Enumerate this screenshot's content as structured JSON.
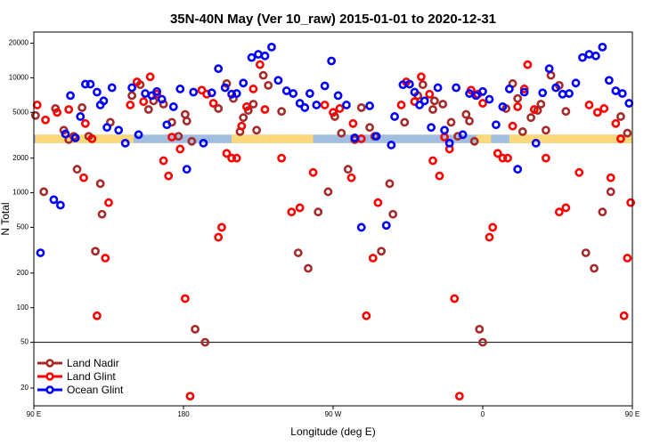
{
  "chart_data": {
    "type": "scatter",
    "title": "35N-40N May (Ver 10_raw)   2015-01-01 to 2020-12-31",
    "xlabel": "Longitude (deg E)",
    "ylabel": "N Total",
    "y_scale": "log",
    "xlim": [
      90,
      450
    ],
    "ylim": [
      14,
      25000
    ],
    "x_ticks": [
      {
        "value": 90,
        "label": "90 E"
      },
      {
        "value": 180,
        "label": "180"
      },
      {
        "value": 270,
        "label": "90 W"
      },
      {
        "value": 360,
        "label": "0"
      },
      {
        "value": 450,
        "label": "90 E"
      },
      {
        "value": 540,
        "label": "180"
      }
    ],
    "y_ticks": [
      20,
      50,
      100,
      200,
      500,
      1000,
      2000,
      5000,
      10000,
      20000
    ],
    "reference_line": 50,
    "legend_position": "bottom-left",
    "band": {
      "y_low": 2700,
      "y_high": 3200,
      "ocean_color": "#a3bde0",
      "land_color": "#fbd97a"
    },
    "series": [
      {
        "name": "Land Nadir",
        "color": "#a52a2a",
        "points": [
          [
            91,
            4700
          ],
          [
            96,
            1020
          ],
          [
            103,
            5400
          ],
          [
            108,
            3500
          ],
          [
            111,
            2900
          ],
          [
            114,
            3100
          ],
          [
            116,
            1600
          ],
          [
            119,
            5500
          ],
          [
            123,
            3100
          ],
          [
            127,
            310
          ],
          [
            130,
            1200
          ],
          [
            131,
            650
          ],
          [
            136,
            4100
          ],
          [
            149,
            7000
          ],
          [
            154,
            8700
          ],
          [
            159,
            5300
          ],
          [
            162,
            6300
          ],
          [
            168,
            5900
          ],
          [
            173,
            4100
          ],
          [
            177,
            3100
          ],
          [
            181,
            4800
          ],
          [
            182,
            4200
          ],
          [
            185,
            2800
          ],
          [
            187,
            65
          ],
          [
            193,
            50
          ],
          [
            201,
            5400
          ],
          [
            206,
            8900
          ],
          [
            210,
            6600
          ],
          [
            214,
            3400
          ],
          [
            216,
            4500
          ],
          [
            219,
            5200
          ],
          [
            222,
            5900
          ],
          [
            224,
            3500
          ],
          [
            228,
            10500
          ],
          [
            231,
            8600
          ],
          [
            239,
            5100
          ],
          [
            249,
            300
          ],
          [
            255,
            220
          ],
          [
            261,
            680
          ],
          [
            267,
            1020
          ],
          [
            271,
            4600
          ],
          [
            275,
            3300
          ],
          [
            279,
            1600
          ],
          [
            283,
            2900
          ],
          [
            287,
            5500
          ],
          [
            292,
            3700
          ],
          [
            295,
            3100
          ],
          [
            299,
            310
          ],
          [
            304,
            1200
          ],
          [
            306,
            650
          ],
          [
            313,
            4100
          ],
          [
            321,
            7000
          ],
          [
            324,
            8700
          ],
          [
            330,
            5300
          ],
          [
            331,
            6300
          ],
          [
            336,
            5900
          ],
          [
            341,
            4100
          ],
          [
            345,
            3100
          ],
          [
            350,
            4800
          ],
          [
            352,
            4200
          ],
          [
            355,
            2800
          ],
          [
            358,
            65
          ],
          [
            360,
            50
          ],
          [
            374,
            5400
          ],
          [
            378,
            8900
          ],
          [
            381,
            6600
          ],
          [
            384,
            3400
          ],
          [
            389,
            4500
          ],
          [
            393,
            5200
          ],
          [
            395,
            5900
          ],
          [
            398,
            3500
          ],
          [
            401,
            10500
          ],
          [
            406,
            8600
          ],
          [
            410,
            5100
          ],
          [
            422,
            300
          ],
          [
            427,
            220
          ],
          [
            432,
            680
          ],
          [
            437,
            1020
          ],
          [
            443,
            4600
          ],
          [
            447,
            3300
          ]
        ]
      },
      {
        "name": "Land Glint",
        "color": "#ff0000",
        "points": [
          [
            92,
            5800
          ],
          [
            97,
            4300
          ],
          [
            104,
            5000
          ],
          [
            111,
            5300
          ],
          [
            120,
            1350
          ],
          [
            121,
            4000
          ],
          [
            125,
            2950
          ],
          [
            128,
            85
          ],
          [
            133,
            270
          ],
          [
            135,
            820
          ],
          [
            148,
            5800
          ],
          [
            152,
            9200
          ],
          [
            156,
            6200
          ],
          [
            160,
            10200
          ],
          [
            164,
            7200
          ],
          [
            168,
            1900
          ],
          [
            171,
            1400
          ],
          [
            173,
            3050
          ],
          [
            178,
            2400
          ],
          [
            181,
            120
          ],
          [
            184,
            17
          ],
          [
            191,
            7800
          ],
          [
            194,
            7200
          ],
          [
            198,
            6000
          ],
          [
            201,
            410
          ],
          [
            203,
            500
          ],
          [
            206,
            2200
          ],
          [
            209,
            2000
          ],
          [
            212,
            2000
          ],
          [
            215,
            3800
          ],
          [
            218,
            5600
          ],
          [
            222,
            8000
          ],
          [
            226,
            13000
          ],
          [
            229,
            5300
          ],
          [
            239,
            2000
          ],
          [
            245,
            680
          ],
          [
            250,
            740
          ],
          [
            258,
            1500
          ],
          [
            265,
            5800
          ],
          [
            270,
            5000
          ],
          [
            274,
            5400
          ],
          [
            281,
            1350
          ],
          [
            282,
            4000
          ],
          [
            287,
            2950
          ],
          [
            290,
            85
          ],
          [
            294,
            270
          ],
          [
            297,
            820
          ],
          [
            311,
            5800
          ],
          [
            314,
            9200
          ],
          [
            319,
            6200
          ],
          [
            323,
            10200
          ],
          [
            328,
            7200
          ],
          [
            330,
            1900
          ],
          [
            334,
            1400
          ],
          [
            337,
            3050
          ],
          [
            340,
            2400
          ],
          [
            343,
            120
          ],
          [
            346,
            17
          ],
          [
            353,
            7800
          ],
          [
            357,
            7200
          ],
          [
            360,
            6000
          ],
          [
            364,
            410
          ],
          [
            366,
            500
          ],
          [
            369,
            2200
          ],
          [
            372,
            2000
          ],
          [
            375,
            2000
          ],
          [
            378,
            3800
          ],
          [
            381,
            5600
          ],
          [
            385,
            8000
          ],
          [
            387,
            13000
          ],
          [
            391,
            5300
          ],
          [
            398,
            2000
          ],
          [
            406,
            680
          ],
          [
            410,
            740
          ],
          [
            418,
            1500
          ],
          [
            424,
            5800
          ],
          [
            429,
            5000
          ],
          [
            433,
            5400
          ],
          [
            437,
            1350
          ],
          [
            440,
            4000
          ],
          [
            443,
            2950
          ],
          [
            445,
            85
          ],
          [
            447,
            270
          ],
          [
            449,
            820
          ]
        ]
      },
      {
        "name": "Ocean Glint",
        "color": "#0000ff",
        "points": [
          [
            94,
            300
          ],
          [
            102,
            870
          ],
          [
            106,
            780
          ],
          [
            109,
            3250
          ],
          [
            112,
            7000
          ],
          [
            115,
            3000
          ],
          [
            118,
            4600
          ],
          [
            121,
            8800
          ],
          [
            124,
            8800
          ],
          [
            128,
            7500
          ],
          [
            130,
            5800
          ],
          [
            132,
            6300
          ],
          [
            134,
            3700
          ],
          [
            137,
            8200
          ],
          [
            141,
            3500
          ],
          [
            145,
            2700
          ],
          [
            149,
            8200
          ],
          [
            153,
            3200
          ],
          [
            157,
            7300
          ],
          [
            161,
            7000
          ],
          [
            164,
            7600
          ],
          [
            167,
            6500
          ],
          [
            170,
            3900
          ],
          [
            174,
            5600
          ],
          [
            178,
            8000
          ],
          [
            182,
            1600
          ],
          [
            186,
            7500
          ],
          [
            192,
            2700
          ],
          [
            197,
            7400
          ],
          [
            201,
            12000
          ],
          [
            205,
            8200
          ],
          [
            209,
            7200
          ],
          [
            212,
            7300
          ],
          [
            216,
            9000
          ],
          [
            221,
            15000
          ],
          [
            225,
            16000
          ],
          [
            229,
            15500
          ],
          [
            233,
            18500
          ],
          [
            237,
            9500
          ],
          [
            242,
            7700
          ],
          [
            246,
            7300
          ],
          [
            250,
            6000
          ],
          [
            253,
            5500
          ],
          [
            256,
            7300
          ],
          [
            260,
            5800
          ],
          [
            265,
            8500
          ],
          [
            269,
            14000
          ],
          [
            273,
            7000
          ],
          [
            278,
            5800
          ],
          [
            283,
            3000
          ],
          [
            287,
            500
          ],
          [
            292,
            5700
          ],
          [
            296,
            3100
          ],
          [
            302,
            520
          ],
          [
            305,
            2600
          ],
          [
            307,
            4600
          ],
          [
            312,
            8700
          ],
          [
            316,
            8800
          ],
          [
            319,
            7500
          ],
          [
            322,
            5800
          ],
          [
            325,
            6300
          ],
          [
            329,
            3700
          ],
          [
            333,
            8200
          ],
          [
            337,
            3500
          ],
          [
            340,
            2700
          ],
          [
            344,
            8200
          ],
          [
            348,
            3200
          ],
          [
            352,
            7300
          ],
          [
            356,
            7000
          ],
          [
            360,
            7600
          ],
          [
            364,
            6500
          ],
          [
            368,
            3900
          ],
          [
            372,
            5600
          ],
          [
            376,
            8000
          ],
          [
            381,
            1600
          ],
          [
            385,
            7500
          ],
          [
            392,
            2700
          ],
          [
            396,
            7400
          ],
          [
            400,
            12000
          ],
          [
            404,
            8200
          ],
          [
            408,
            7200
          ],
          [
            412,
            7300
          ],
          [
            416,
            9000
          ],
          [
            420,
            15000
          ],
          [
            424,
            16000
          ],
          [
            428,
            15500
          ],
          [
            432,
            18500
          ],
          [
            436,
            9500
          ],
          [
            440,
            7700
          ],
          [
            444,
            7300
          ],
          [
            448,
            6000
          ]
        ]
      }
    ]
  }
}
